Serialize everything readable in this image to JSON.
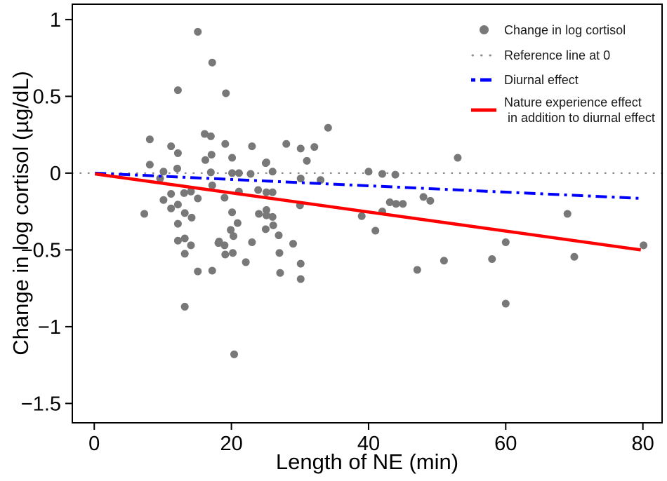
{
  "chart_data": {
    "type": "scatter",
    "title": "",
    "xlabel": "Length of NE (min)",
    "ylabel": "Change in log cortisol (µg/dL)",
    "xlim": [
      -3.2,
      82.8
    ],
    "ylim": [
      -1.626,
      1.1
    ],
    "xticks": [
      0,
      20,
      40,
      60,
      80
    ],
    "xtick_labels": [
      "0",
      "20",
      "40",
      "60",
      "80"
    ],
    "yticks": [
      1,
      0.5,
      0,
      -0.5,
      -1,
      -1.5
    ],
    "ytick_labels": [
      "1",
      "0.5",
      "0",
      "−0.5",
      "−1",
      "−1.5"
    ],
    "grid": false,
    "legend_position": "top-right",
    "series": [
      {
        "name": "Reference line at 0",
        "type": "line",
        "line_style": "dotted",
        "color": "#909090",
        "width": 2.5,
        "points": [
          [
            -3.2,
            0
          ],
          [
            82.8,
            0
          ]
        ]
      },
      {
        "name": "Change in log cortisol",
        "type": "scatter",
        "color": "#787878",
        "marker_radius": 5.5,
        "points": [
          [
            15.1,
            0.92
          ],
          [
            17.2,
            0.72
          ],
          [
            12.2,
            0.54
          ],
          [
            19.2,
            0.52
          ],
          [
            34.1,
            0.295
          ],
          [
            16.1,
            0.255
          ],
          [
            17.0,
            0.24
          ],
          [
            8.1,
            0.22
          ],
          [
            19.1,
            0.19
          ],
          [
            28.0,
            0.19
          ],
          [
            23.0,
            0.175
          ],
          [
            11.2,
            0.175
          ],
          [
            32.1,
            0.17
          ],
          [
            30.1,
            0.16
          ],
          [
            12.2,
            0.13
          ],
          [
            17.1,
            0.12
          ],
          [
            20.1,
            0.1
          ],
          [
            53.0,
            0.1
          ],
          [
            16.2,
            0.085
          ],
          [
            31.0,
            0.08
          ],
          [
            25.1,
            0.07
          ],
          [
            25.0,
            0.065
          ],
          [
            8.1,
            0.055
          ],
          [
            12.1,
            0.03
          ],
          [
            26.0,
            0.01
          ],
          [
            10.1,
            0.01
          ],
          [
            40.0,
            0.01
          ],
          [
            17.0,
            0.005
          ],
          [
            20.1,
            0.0
          ],
          [
            21.1,
            0.0
          ],
          [
            22.8,
            -0.005
          ],
          [
            42.0,
            -0.005
          ],
          [
            43.9,
            -0.01
          ],
          [
            30.1,
            -0.035
          ],
          [
            9.6,
            -0.035
          ],
          [
            33.0,
            -0.045
          ],
          [
            17.2,
            -0.08
          ],
          [
            23.9,
            -0.11
          ],
          [
            21.1,
            -0.12
          ],
          [
            14.1,
            -0.12
          ],
          [
            25.1,
            -0.125
          ],
          [
            26.0,
            -0.125
          ],
          [
            13.1,
            -0.13
          ],
          [
            11.2,
            -0.135
          ],
          [
            48.0,
            -0.155
          ],
          [
            19.0,
            -0.16
          ],
          [
            15.1,
            -0.165
          ],
          [
            10.1,
            -0.175
          ],
          [
            49.0,
            -0.18
          ],
          [
            43.1,
            -0.19
          ],
          [
            44.0,
            -0.2
          ],
          [
            45.0,
            -0.2
          ],
          [
            12.2,
            -0.205
          ],
          [
            30.0,
            -0.21
          ],
          [
            11.2,
            -0.23
          ],
          [
            25.1,
            -0.24
          ],
          [
            42.0,
            -0.25
          ],
          [
            20.1,
            -0.255
          ],
          [
            13.2,
            -0.26
          ],
          [
            24.0,
            -0.265
          ],
          [
            7.3,
            -0.265
          ],
          [
            69.0,
            -0.265
          ],
          [
            25.1,
            -0.275
          ],
          [
            39.0,
            -0.28
          ],
          [
            26.0,
            -0.285
          ],
          [
            14.2,
            -0.29
          ],
          [
            20.9,
            -0.325
          ],
          [
            12.2,
            -0.33
          ],
          [
            26.1,
            -0.34
          ],
          [
            25.0,
            -0.365
          ],
          [
            19.9,
            -0.37
          ],
          [
            41.0,
            -0.375
          ],
          [
            26.9,
            -0.405
          ],
          [
            20.3,
            -0.41
          ],
          [
            13.2,
            -0.425
          ],
          [
            12.2,
            -0.44
          ],
          [
            18.2,
            -0.445
          ],
          [
            60.0,
            -0.45
          ],
          [
            23.0,
            -0.45
          ],
          [
            18.1,
            -0.455
          ],
          [
            29.0,
            -0.46
          ],
          [
            14.1,
            -0.47
          ],
          [
            19.0,
            -0.47
          ],
          [
            80.1,
            -0.47
          ],
          [
            27.0,
            -0.52
          ],
          [
            20.2,
            -0.52
          ],
          [
            13.2,
            -0.525
          ],
          [
            19.1,
            -0.53
          ],
          [
            70.0,
            -0.545
          ],
          [
            58.0,
            -0.56
          ],
          [
            51.0,
            -0.57
          ],
          [
            22.1,
            -0.58
          ],
          [
            30.1,
            -0.59
          ],
          [
            47.1,
            -0.63
          ],
          [
            17.2,
            -0.635
          ],
          [
            15.1,
            -0.64
          ],
          [
            27.1,
            -0.65
          ],
          [
            30.1,
            -0.69
          ],
          [
            60.0,
            -0.85
          ],
          [
            13.2,
            -0.87
          ],
          [
            20.4,
            -1.18
          ]
        ]
      },
      {
        "name": "Diurnal effect",
        "type": "line",
        "line_style": "dashdot",
        "color": "#0000FF",
        "width": 4,
        "points": [
          [
            0.1,
            0
          ],
          [
            79.9,
            -0.165
          ]
        ]
      },
      {
        "name": "Nature experience effect in addition to diurnal effect",
        "type": "line",
        "line_style": "solid",
        "color": "#FF0000",
        "width": 4.5,
        "points": [
          [
            0.1,
            -0.005
          ],
          [
            79.7,
            -0.5
          ]
        ]
      }
    ],
    "legend": {
      "items": [
        {
          "marker": "dot",
          "color": "#787878",
          "label": "Change in log cortisol"
        },
        {
          "marker": "dotted-line",
          "color": "#909090",
          "label": "Reference line at 0"
        },
        {
          "marker": "dashdot-line",
          "color": "#0000FF",
          "label": "Diurnal effect"
        },
        {
          "marker": "solid-line",
          "color": "#FF0000",
          "label": "Nature experience effect",
          "label2": " in addition to diurnal effect"
        }
      ]
    }
  }
}
